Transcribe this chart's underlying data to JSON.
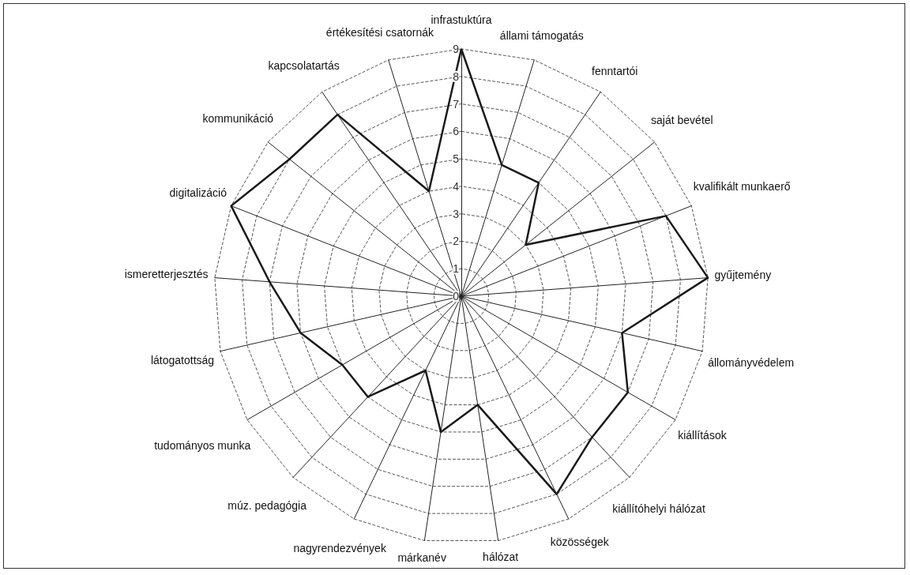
{
  "chart_data": {
    "type": "radar",
    "categories": [
      "infrastuktúra",
      "állami támogatás",
      "fenntartói",
      "saját bevétel",
      "kvalifikált munkaerő",
      "gyűjtemény",
      "állományvédelem",
      "kiállítások",
      "kiállítóhelyi hálózat",
      "közösségek",
      "hálózat",
      "márkanév",
      "nagyrendezvények",
      "múz. pedagógia",
      "tudományos munka",
      "látogatottság",
      "ismeretterjesztés",
      "digitalizáció",
      "kommunikáció",
      "kapcsolatartás",
      "értékesítési csatornák"
    ],
    "series": [
      {
        "color": "#1a1a1a",
        "values": [
          9,
          5,
          5,
          3,
          8,
          9,
          6,
          7,
          7,
          8,
          4,
          5,
          3,
          5,
          5,
          6,
          7,
          9,
          8,
          8,
          4
        ]
      }
    ],
    "ylim": [
      0,
      9
    ],
    "yticks": [
      0,
      1,
      2,
      3,
      4,
      5,
      6,
      7,
      8,
      9
    ],
    "grid": true,
    "line_style": "solid",
    "marker": "none"
  }
}
